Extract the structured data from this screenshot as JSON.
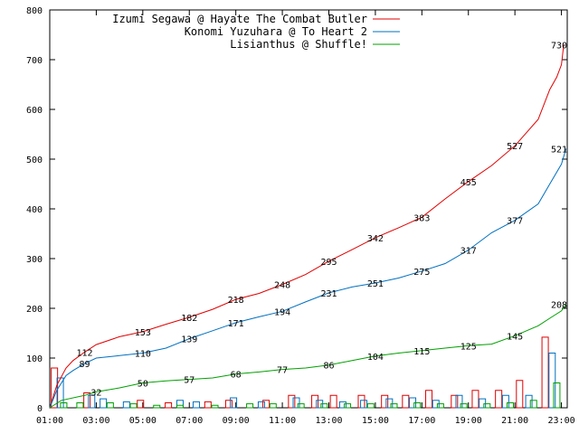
{
  "chart_data": {
    "type": "line",
    "title": "",
    "xlabel": "",
    "ylabel": "",
    "ylim": [
      0,
      800
    ],
    "grid": false,
    "legend_position": "top-right",
    "x_ticks": [
      "01:00",
      "03:00",
      "05:00",
      "07:00",
      "09:00",
      "11:00",
      "13:00",
      "15:00",
      "17:00",
      "19:00",
      "21:00",
      "23:00"
    ],
    "y_ticks": [
      "0",
      "100",
      "200",
      "300",
      "400",
      "500",
      "600",
      "700",
      "800"
    ],
    "x_range": [
      1,
      23.25
    ],
    "series": [
      {
        "name": "Izumi Segawa @ Hayate The Combat Butler",
        "color": "#e00000",
        "cumulative": [
          [
            1.0,
            0
          ],
          [
            1.3,
            45
          ],
          [
            1.7,
            80
          ],
          [
            2.0,
            95
          ],
          [
            2.5,
            112
          ],
          [
            3.0,
            127
          ],
          [
            4.0,
            143
          ],
          [
            5.0,
            153
          ],
          [
            6.0,
            168
          ],
          [
            7.0,
            182
          ],
          [
            8.0,
            198
          ],
          [
            9.0,
            218
          ],
          [
            10.0,
            230
          ],
          [
            11.0,
            248
          ],
          [
            12.0,
            268
          ],
          [
            13.0,
            295
          ],
          [
            14.0,
            318
          ],
          [
            15.0,
            342
          ],
          [
            16.0,
            362
          ],
          [
            17.0,
            383
          ],
          [
            18.0,
            420
          ],
          [
            19.0,
            455
          ],
          [
            20.0,
            487
          ],
          [
            21.0,
            527
          ],
          [
            22.0,
            580
          ],
          [
            22.5,
            640
          ],
          [
            22.8,
            665
          ],
          [
            23.0,
            690
          ],
          [
            23.1,
            730
          ]
        ],
        "labels": [
          [
            2.5,
            112
          ],
          [
            5.0,
            153
          ],
          [
            7.0,
            182
          ],
          [
            9.0,
            218
          ],
          [
            11.0,
            248
          ],
          [
            13.0,
            295
          ],
          [
            15.0,
            342
          ],
          [
            17.0,
            383
          ],
          [
            19.0,
            455
          ],
          [
            21.0,
            527
          ],
          [
            22.9,
            730
          ]
        ],
        "hourly": [
          [
            1.2,
            80
          ],
          [
            2.6,
            30
          ],
          [
            4.9,
            15
          ],
          [
            6.1,
            10
          ],
          [
            7.8,
            12
          ],
          [
            8.7,
            15
          ],
          [
            10.3,
            15
          ],
          [
            11.4,
            25
          ],
          [
            12.4,
            25
          ],
          [
            13.2,
            25
          ],
          [
            14.4,
            25
          ],
          [
            15.4,
            25
          ],
          [
            16.3,
            25
          ],
          [
            17.3,
            35
          ],
          [
            18.4,
            25
          ],
          [
            19.3,
            35
          ],
          [
            20.3,
            35
          ],
          [
            21.2,
            55
          ],
          [
            22.3,
            142
          ]
        ]
      },
      {
        "name": "Konomi Yuzuhara @ To Heart 2",
        "color": "#0070c0",
        "cumulative": [
          [
            1.0,
            0
          ],
          [
            1.3,
            35
          ],
          [
            1.7,
            65
          ],
          [
            2.0,
            75
          ],
          [
            2.5,
            89
          ],
          [
            3.0,
            100
          ],
          [
            4.0,
            105
          ],
          [
            5.0,
            110
          ],
          [
            6.0,
            120
          ],
          [
            7.0,
            139
          ],
          [
            8.0,
            155
          ],
          [
            9.0,
            171
          ],
          [
            10.0,
            183
          ],
          [
            11.0,
            194
          ],
          [
            12.0,
            213
          ],
          [
            13.0,
            231
          ],
          [
            14.0,
            243
          ],
          [
            15.0,
            251
          ],
          [
            16.0,
            261
          ],
          [
            17.0,
            275
          ],
          [
            18.0,
            290
          ],
          [
            19.0,
            317
          ],
          [
            20.0,
            352
          ],
          [
            21.0,
            377
          ],
          [
            22.0,
            410
          ],
          [
            22.5,
            450
          ],
          [
            23.0,
            490
          ],
          [
            23.2,
            521
          ]
        ],
        "labels": [
          [
            2.5,
            89
          ],
          [
            5.0,
            110
          ],
          [
            7.0,
            139
          ],
          [
            9.0,
            171
          ],
          [
            11.0,
            194
          ],
          [
            13.0,
            231
          ],
          [
            15.0,
            251
          ],
          [
            17.0,
            275
          ],
          [
            19.0,
            317
          ],
          [
            21.0,
            377
          ],
          [
            22.9,
            521
          ]
        ],
        "hourly": [
          [
            1.45,
            60
          ],
          [
            2.8,
            25
          ],
          [
            3.3,
            18
          ],
          [
            4.3,
            12
          ],
          [
            6.6,
            15
          ],
          [
            7.3,
            12
          ],
          [
            8.9,
            20
          ],
          [
            10.1,
            12
          ],
          [
            11.6,
            20
          ],
          [
            12.6,
            15
          ],
          [
            13.6,
            12
          ],
          [
            14.5,
            15
          ],
          [
            15.6,
            18
          ],
          [
            16.6,
            20
          ],
          [
            17.6,
            15
          ],
          [
            18.6,
            25
          ],
          [
            19.6,
            18
          ],
          [
            20.6,
            25
          ],
          [
            21.6,
            25
          ],
          [
            22.6,
            110
          ]
        ]
      },
      {
        "name": "Lisianthus @ Shuffle!",
        "color": "#00a000",
        "cumulative": [
          [
            1.0,
            0
          ],
          [
            1.5,
            15
          ],
          [
            2.5,
            25
          ],
          [
            3.0,
            32
          ],
          [
            4.0,
            40
          ],
          [
            5.0,
            50
          ],
          [
            6.0,
            54
          ],
          [
            7.0,
            57
          ],
          [
            8.0,
            60
          ],
          [
            9.0,
            68
          ],
          [
            10.0,
            72
          ],
          [
            11.0,
            77
          ],
          [
            12.0,
            80
          ],
          [
            13.0,
            86
          ],
          [
            14.0,
            95
          ],
          [
            15.0,
            104
          ],
          [
            16.0,
            110
          ],
          [
            17.0,
            115
          ],
          [
            18.0,
            120
          ],
          [
            19.0,
            125
          ],
          [
            20.0,
            128
          ],
          [
            21.0,
            145
          ],
          [
            22.0,
            165
          ],
          [
            22.5,
            180
          ],
          [
            23.0,
            195
          ],
          [
            23.2,
            208
          ]
        ],
        "labels": [
          [
            3.0,
            32
          ],
          [
            5.0,
            50
          ],
          [
            7.0,
            57
          ],
          [
            9.0,
            68
          ],
          [
            11.0,
            77
          ],
          [
            13.0,
            86
          ],
          [
            15.0,
            104
          ],
          [
            17.0,
            115
          ],
          [
            19.0,
            125
          ],
          [
            21.0,
            145
          ],
          [
            22.9,
            208
          ]
        ],
        "hourly": [
          [
            1.6,
            10
          ],
          [
            2.3,
            10
          ],
          [
            3.6,
            10
          ],
          [
            4.6,
            8
          ],
          [
            5.6,
            5
          ],
          [
            6.6,
            5
          ],
          [
            8.1,
            5
          ],
          [
            9.6,
            8
          ],
          [
            10.6,
            8
          ],
          [
            11.8,
            8
          ],
          [
            12.8,
            8
          ],
          [
            13.8,
            8
          ],
          [
            14.8,
            8
          ],
          [
            15.8,
            8
          ],
          [
            16.8,
            10
          ],
          [
            17.8,
            8
          ],
          [
            18.8,
            8
          ],
          [
            19.8,
            8
          ],
          [
            20.8,
            10
          ],
          [
            21.8,
            15
          ],
          [
            22.8,
            50
          ]
        ]
      }
    ]
  }
}
